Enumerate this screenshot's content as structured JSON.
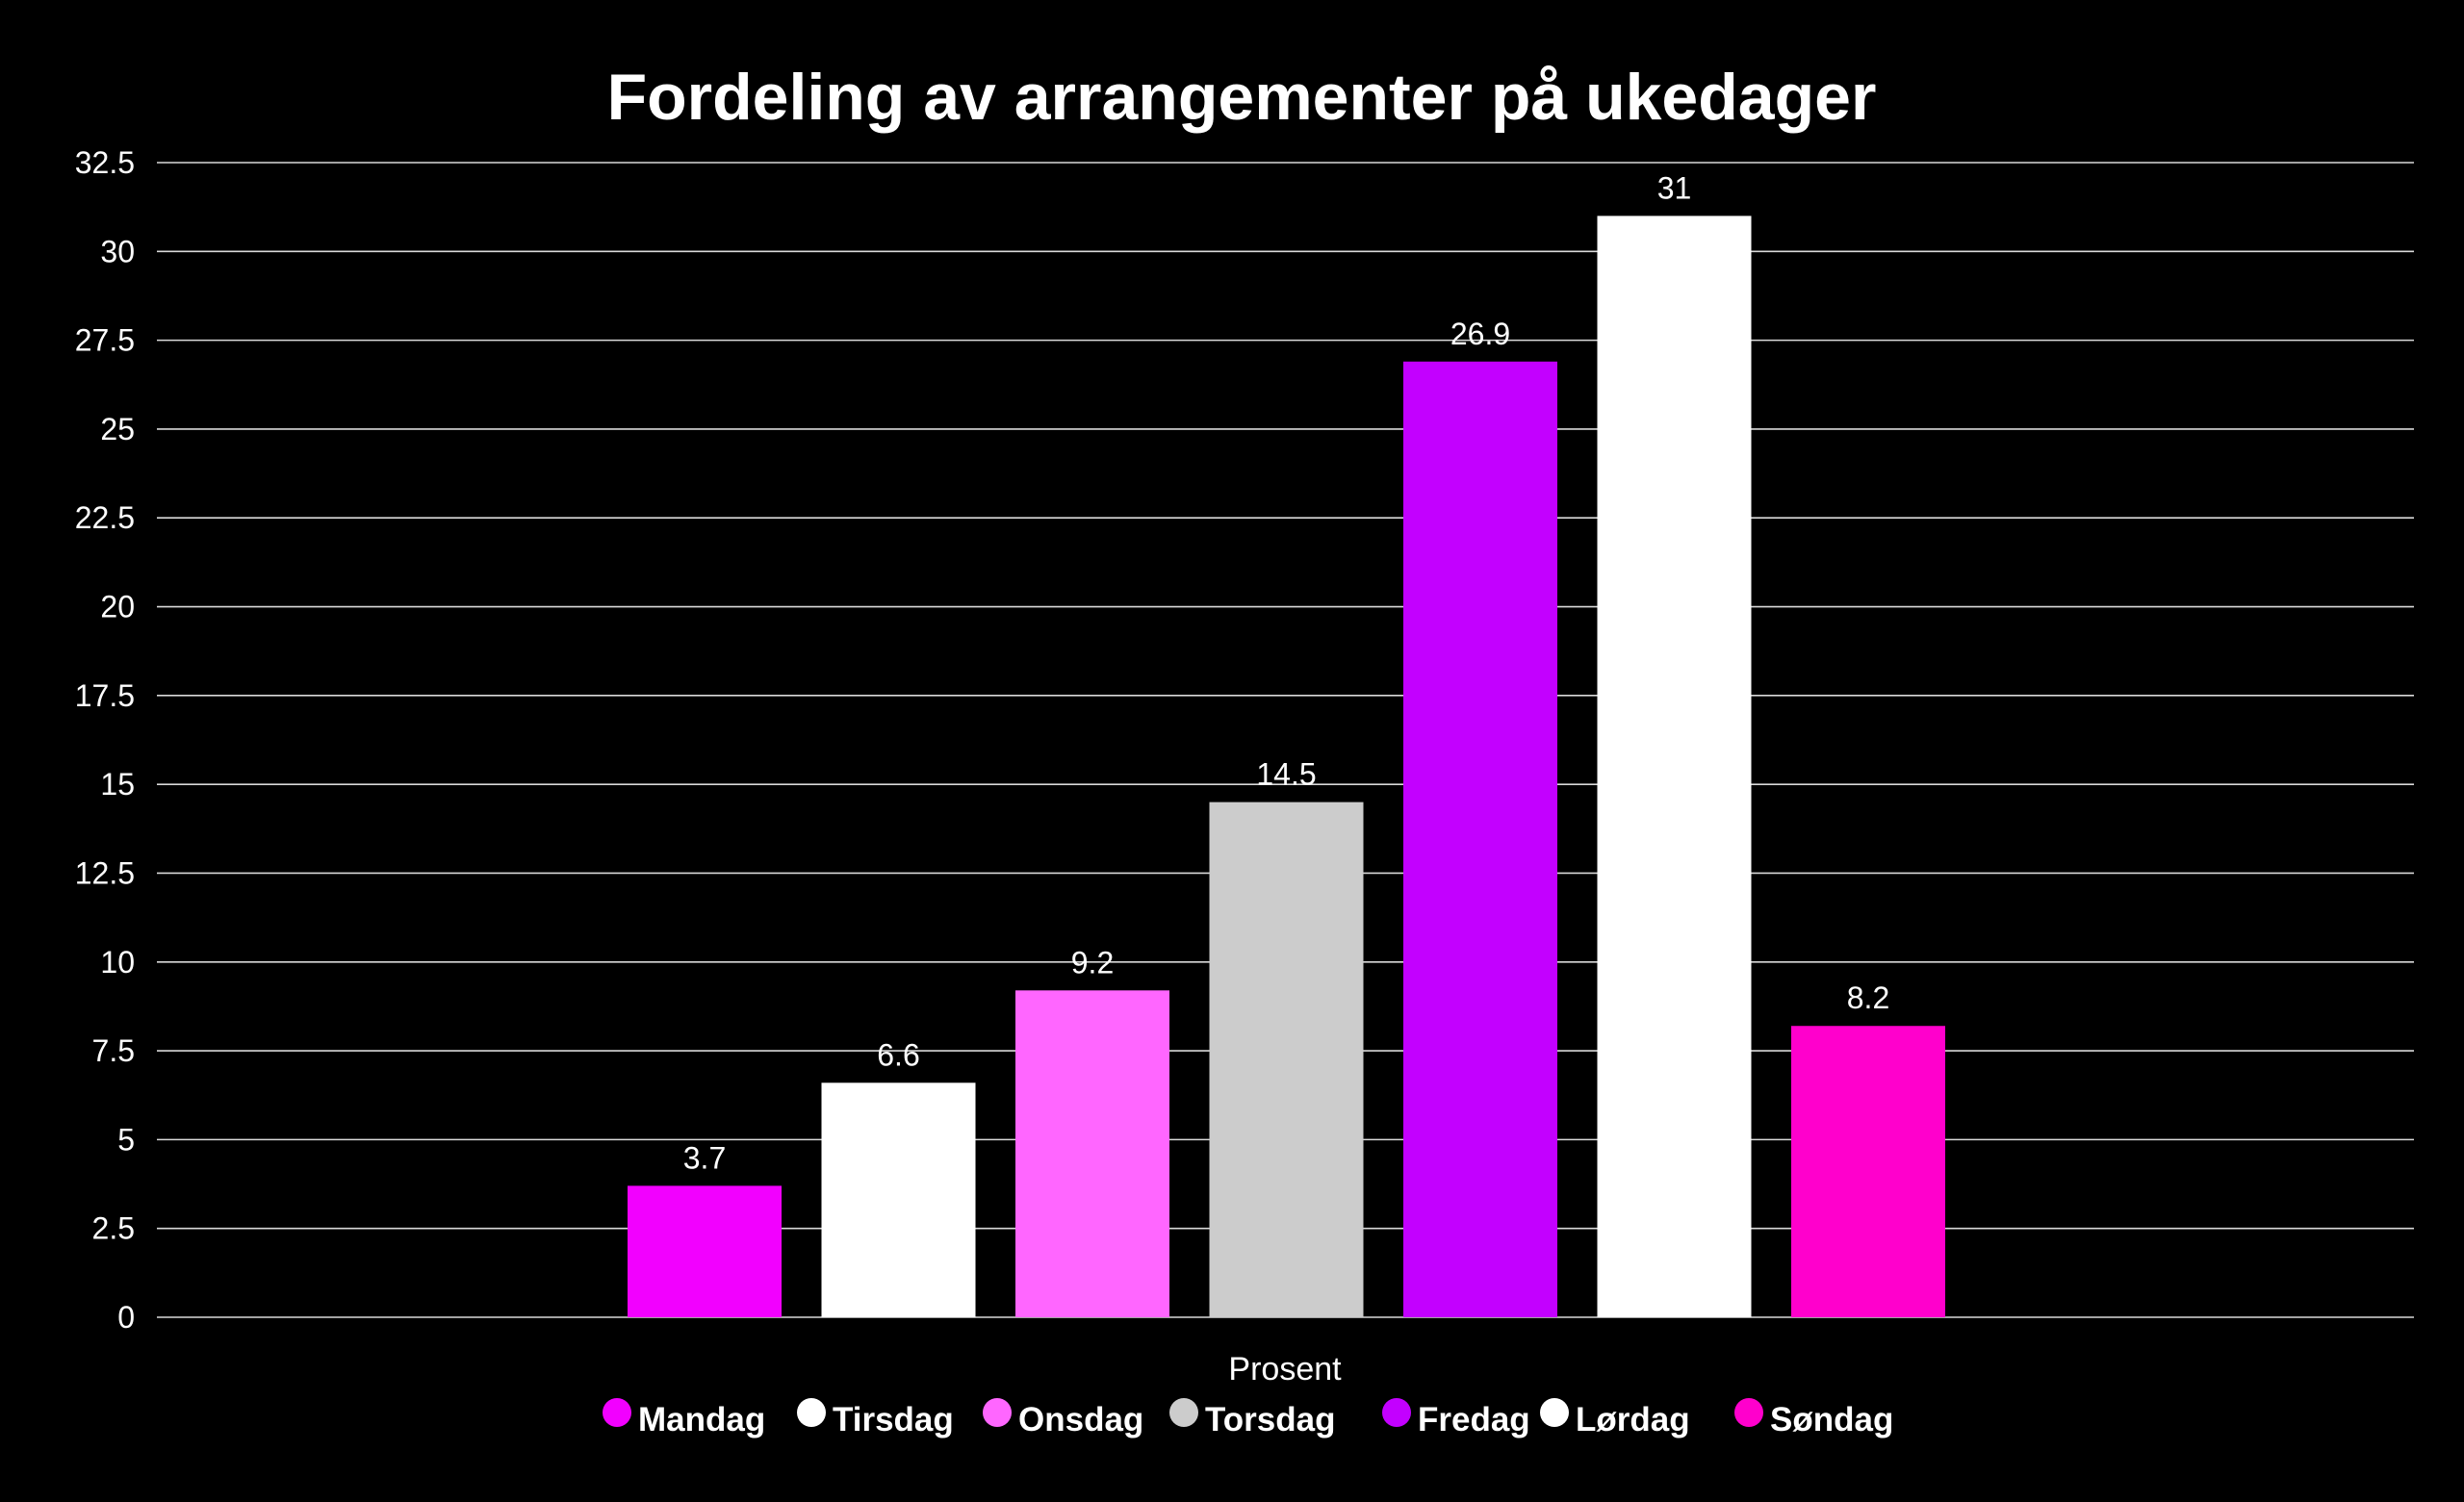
{
  "chart_data": {
    "type": "bar",
    "title": "Fordeling av arrangementer på ukedager",
    "xlabel": "Prosent",
    "ylabel": "",
    "ylim": [
      0,
      32.5
    ],
    "ytick_step": 2.5,
    "yticks": [
      "0",
      "2.5",
      "5",
      "7.5",
      "10",
      "12.5",
      "15",
      "17.5",
      "20",
      "22.5",
      "25",
      "27.5",
      "30",
      "32.5"
    ],
    "grid": true,
    "legend_position": "bottom",
    "categories": [
      "Prosent"
    ],
    "series": [
      {
        "name": "Mandag",
        "values": [
          3.7
        ],
        "label": "3.7",
        "color": "#f200ff"
      },
      {
        "name": "Tirsdag",
        "values": [
          6.6
        ],
        "label": "6.6",
        "color": "#ffffff"
      },
      {
        "name": "Onsdag",
        "values": [
          9.2
        ],
        "label": "9.2",
        "color": "#ff66ff"
      },
      {
        "name": "Torsdag",
        "values": [
          14.5
        ],
        "label": "14.5",
        "color": "#cccccc"
      },
      {
        "name": "Fredag",
        "values": [
          26.9
        ],
        "label": "26.9",
        "color": "#c300ff"
      },
      {
        "name": "Lørdag",
        "values": [
          31
        ],
        "label": "31",
        "color": "#ffffff"
      },
      {
        "name": "Søndag",
        "values": [
          8.2
        ],
        "label": "8.2",
        "color": "#ff00cc"
      }
    ]
  }
}
